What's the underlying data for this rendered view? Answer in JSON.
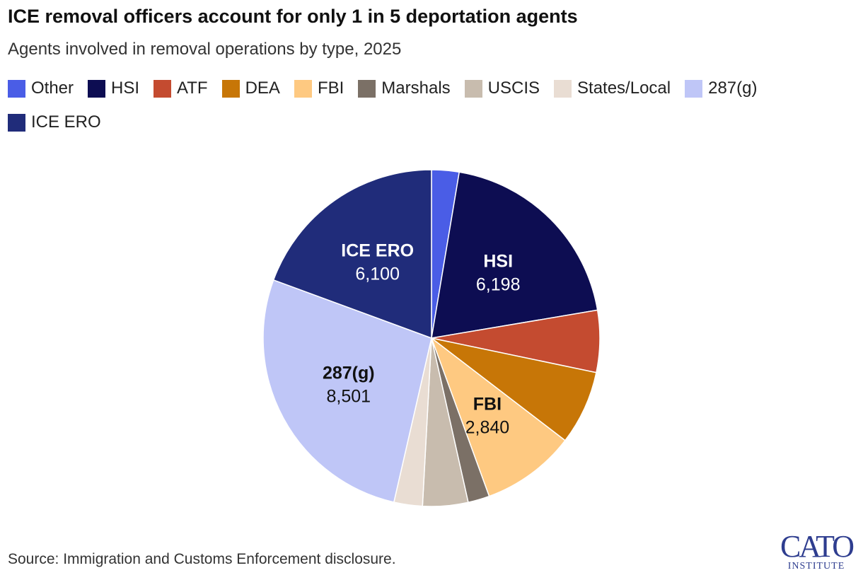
{
  "title": "ICE removal officers account for only 1 in 5 deportation agents",
  "subtitle": "Agents involved in removal operations by type, 2025",
  "source": "Source: Immigration and Customs Enforcement disclosure.",
  "logo": {
    "main": "CATO",
    "sub": "INSTITUTE"
  },
  "chart_data": {
    "type": "pie",
    "title": "ICE removal officers account for only 1 in 5 deportation agents",
    "subtitle": "Agents involved in removal operations by type, 2025",
    "legend_position": "top",
    "start": "12 o'clock, clockwise",
    "slices": [
      {
        "name": "Other",
        "value": 830,
        "color": "#4a5de6",
        "label_value": ""
      },
      {
        "name": "HSI",
        "value": 6198,
        "color": "#0d0d52",
        "label_value": "6,198",
        "label_color": "#ffffff"
      },
      {
        "name": "ATF",
        "value": 1870,
        "color": "#c44b30",
        "label_value": ""
      },
      {
        "name": "DEA",
        "value": 2240,
        "color": "#c77607",
        "label_value": ""
      },
      {
        "name": "FBI",
        "value": 2840,
        "color": "#fec981",
        "label_value": "2,840",
        "label_color": "#111111"
      },
      {
        "name": "Marshals",
        "value": 650,
        "color": "#7b7066",
        "label_value": ""
      },
      {
        "name": "USCIS",
        "value": 1370,
        "color": "#c8bcae",
        "label_value": ""
      },
      {
        "name": "States/Local",
        "value": 860,
        "color": "#e9ddd3",
        "label_value": ""
      },
      {
        "name": "287(g)",
        "value": 8501,
        "color": "#bfc6f7",
        "label_value": "8,501",
        "label_color": "#111111"
      },
      {
        "name": "ICE ERO",
        "value": 6100,
        "color": "#202c7a",
        "label_value": "6,100",
        "label_color": "#ffffff"
      }
    ]
  }
}
